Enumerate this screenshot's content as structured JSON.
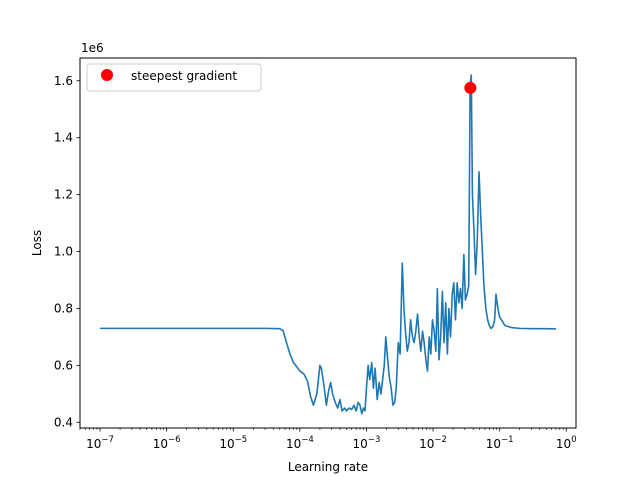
{
  "chart_data": {
    "type": "line",
    "title": "",
    "xlabel": "Learning rate",
    "ylabel": "Loss",
    "xscale": "log",
    "xlim": [
      5e-08,
      1.4
    ],
    "ylim": [
      380000,
      1680000
    ],
    "y_offset_text": "1e6",
    "grid": false,
    "legend": {
      "position": "top-left",
      "entries": [
        "steepest gradient"
      ]
    },
    "x_ticks": [
      1e-07,
      1e-06,
      1e-05,
      0.0001,
      0.001,
      0.01,
      0.1,
      1
    ],
    "x_tick_labels": [
      {
        "base": "10",
        "exp": "−7"
      },
      {
        "base": "10",
        "exp": "−6"
      },
      {
        "base": "10",
        "exp": "−5"
      },
      {
        "base": "10",
        "exp": "−4"
      },
      {
        "base": "10",
        "exp": "−3"
      },
      {
        "base": "10",
        "exp": "−2"
      },
      {
        "base": "10",
        "exp": "−1"
      },
      {
        "base": "10",
        "exp": "0"
      }
    ],
    "y_ticks": [
      400000,
      600000,
      800000,
      1000000,
      1200000,
      1400000,
      1600000
    ],
    "y_tick_labels": [
      "0.4",
      "0.6",
      "0.8",
      "1.0",
      "1.2",
      "1.4",
      "1.6"
    ],
    "series": [
      {
        "color": "#1f77b4",
        "points": [
          [
            1e-07,
            730000
          ],
          [
            1e-06,
            730000
          ],
          [
            1e-05,
            730000
          ],
          [
            3e-05,
            730000
          ],
          [
            5e-05,
            729000
          ],
          [
            5.6e-05,
            722000
          ],
          [
            6.3e-05,
            680000
          ],
          [
            7.1e-05,
            640000
          ],
          [
            8e-05,
            610000
          ],
          [
            9e-05,
            595000
          ],
          [
            0.0001,
            580000
          ],
          [
            0.000115,
            570000
          ],
          [
            0.00013,
            545000
          ],
          [
            0.000145,
            490000
          ],
          [
            0.00016,
            460000
          ],
          [
            0.00018,
            500000
          ],
          [
            0.0002,
            600000
          ],
          [
            0.00021,
            590000
          ],
          [
            0.00023,
            530000
          ],
          [
            0.00025,
            460000
          ],
          [
            0.00027,
            510000
          ],
          [
            0.00029,
            540000
          ],
          [
            0.00031,
            500000
          ],
          [
            0.00034,
            470000
          ],
          [
            0.00037,
            450000
          ],
          [
            0.0004,
            480000
          ],
          [
            0.00043,
            440000
          ],
          [
            0.00047,
            450000
          ],
          [
            0.0005,
            440000
          ],
          [
            0.00055,
            450000
          ],
          [
            0.0006,
            445000
          ],
          [
            0.00065,
            460000
          ],
          [
            0.0007,
            440000
          ],
          [
            0.00075,
            470000
          ],
          [
            0.0008,
            460000
          ],
          [
            0.00085,
            430000
          ],
          [
            0.0009,
            450000
          ],
          [
            0.00095,
            440000
          ],
          [
            0.001,
            520000
          ],
          [
            0.00106,
            600000
          ],
          [
            0.00112,
            550000
          ],
          [
            0.0012,
            610000
          ],
          [
            0.00127,
            520000
          ],
          [
            0.00135,
            590000
          ],
          [
            0.00145,
            480000
          ],
          [
            0.00155,
            540000
          ],
          [
            0.00165,
            500000
          ],
          [
            0.00175,
            550000
          ],
          [
            0.00185,
            600000
          ],
          [
            0.00195,
            700000
          ],
          [
            0.00205,
            640000
          ],
          [
            0.0022,
            560000
          ],
          [
            0.00235,
            520000
          ],
          [
            0.0025,
            460000
          ],
          [
            0.00265,
            470000
          ],
          [
            0.0028,
            520000
          ],
          [
            0.003,
            680000
          ],
          [
            0.0032,
            640000
          ],
          [
            0.00345,
            960000
          ],
          [
            0.00365,
            800000
          ],
          [
            0.00385,
            720000
          ],
          [
            0.0041,
            650000
          ],
          [
            0.00435,
            680000
          ],
          [
            0.0046,
            760000
          ],
          [
            0.0049,
            700000
          ],
          [
            0.0052,
            680000
          ],
          [
            0.0055,
            720000
          ],
          [
            0.00585,
            780000
          ],
          [
            0.0062,
            700000
          ],
          [
            0.00655,
            650000
          ],
          [
            0.00695,
            720000
          ],
          [
            0.00735,
            680000
          ],
          [
            0.0078,
            620000
          ],
          [
            0.00825,
            580000
          ],
          [
            0.00875,
            700000
          ],
          [
            0.00925,
            640000
          ],
          [
            0.0098,
            760000
          ],
          [
            0.0104,
            720000
          ],
          [
            0.011,
            650000
          ],
          [
            0.0116,
            870000
          ],
          [
            0.0123,
            620000
          ],
          [
            0.013,
            700000
          ],
          [
            0.0138,
            860000
          ],
          [
            0.0146,
            680000
          ],
          [
            0.0155,
            820000
          ],
          [
            0.0164,
            640000
          ],
          [
            0.0173,
            800000
          ],
          [
            0.0183,
            700000
          ],
          [
            0.0194,
            850000
          ],
          [
            0.0205,
            890000
          ],
          [
            0.0217,
            760000
          ],
          [
            0.023,
            890000
          ],
          [
            0.0244,
            820000
          ],
          [
            0.0258,
            870000
          ],
          [
            0.0273,
            800000
          ],
          [
            0.029,
            990000
          ],
          [
            0.0306,
            830000
          ],
          [
            0.0324,
            850000
          ],
          [
            0.0343,
            880000
          ],
          [
            0.036,
            1580000
          ],
          [
            0.0375,
            1620000
          ],
          [
            0.039,
            1200000
          ],
          [
            0.041,
            1080000
          ],
          [
            0.0435,
            920000
          ],
          [
            0.046,
            1030000
          ],
          [
            0.049,
            1280000
          ],
          [
            0.052,
            1120000
          ],
          [
            0.055,
            1000000
          ],
          [
            0.058,
            880000
          ],
          [
            0.062,
            800000
          ],
          [
            0.066,
            760000
          ],
          [
            0.07,
            740000
          ],
          [
            0.074,
            730000
          ],
          [
            0.079,
            735000
          ],
          [
            0.084,
            760000
          ],
          [
            0.088,
            850000
          ],
          [
            0.094,
            800000
          ],
          [
            0.1,
            770000
          ],
          [
            0.12,
            740000
          ],
          [
            0.15,
            733000
          ],
          [
            0.2,
            730000
          ],
          [
            0.3,
            729000
          ],
          [
            0.5,
            729000
          ],
          [
            0.7,
            728000
          ]
        ]
      }
    ],
    "steepest_gradient": {
      "label": "steepest gradient",
      "x": 0.0363,
      "y": 1575000,
      "color": "#ff0000"
    }
  }
}
